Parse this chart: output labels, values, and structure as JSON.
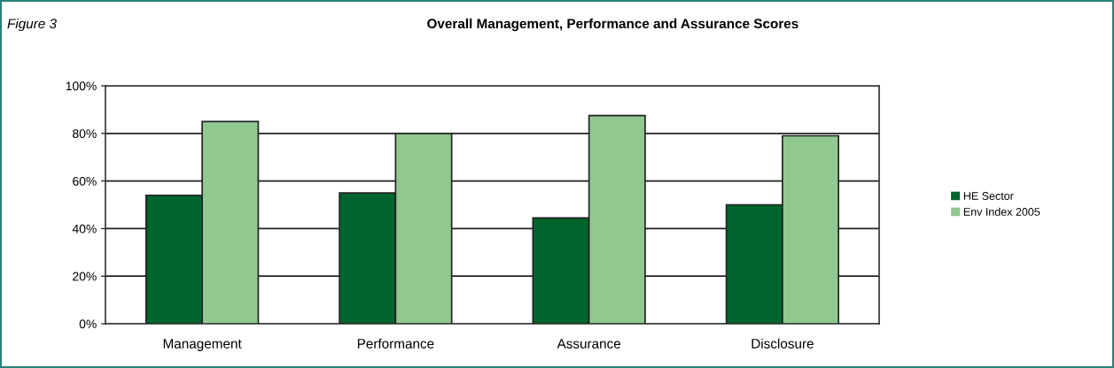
{
  "chart_data": {
    "type": "bar",
    "title": "Overall Management, Performance and Assurance Scores",
    "annotations": [
      "Figure 3"
    ],
    "categories": [
      "Management",
      "Performance",
      "Assurance",
      "Disclosure"
    ],
    "series": [
      {
        "name": "HE Sector",
        "color": "#00642d",
        "values": [
          54,
          55,
          44.5,
          50
        ]
      },
      {
        "name": "Env Index 2005",
        "color": "#90c890",
        "values": [
          85,
          80,
          87.5,
          79
        ]
      }
    ],
    "ylim": [
      0,
      100
    ],
    "yticks": [
      {
        "value": 0,
        "label": "0%"
      },
      {
        "value": 20,
        "label": "20%"
      },
      {
        "value": 40,
        "label": "40%"
      },
      {
        "value": 60,
        "label": "60%"
      },
      {
        "value": 80,
        "label": "80%"
      },
      {
        "value": 100,
        "label": "100%"
      }
    ],
    "grid": "y",
    "legend": "right"
  }
}
